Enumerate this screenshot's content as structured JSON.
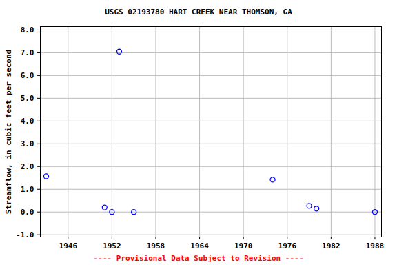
{
  "chart_data": {
    "type": "scatter",
    "title": "USGS 02193780 HART CREEK NEAR THOMSON, GA",
    "y_label": "Streamflow, in cubic feet per second",
    "caption": "---- Provisional Data Subject to Revision ----",
    "x": [
      1943,
      1951,
      1952,
      1953,
      1955,
      1974,
      1979,
      1980,
      1988
    ],
    "values": [
      1.57,
      0.2,
      0.0,
      7.05,
      0.0,
      1.42,
      0.27,
      0.15,
      0.0
    ],
    "color": "#0000ff",
    "marker": "open circle",
    "xlim": [
      1942.2,
      1988.9
    ],
    "xticks": [
      1946,
      1952,
      1958,
      1964,
      1970,
      1976,
      1982,
      1988
    ],
    "ylim": [
      -1.1,
      8.15
    ],
    "yticks": [
      {
        "value": -1,
        "label": "-1.0"
      },
      {
        "value": 0,
        "label": "0.0"
      },
      {
        "value": 1,
        "label": "1.0"
      },
      {
        "value": 2,
        "label": "2.0"
      },
      {
        "value": 3,
        "label": "3.0"
      },
      {
        "value": 4,
        "label": "4.0"
      },
      {
        "value": 5,
        "label": "5.0"
      },
      {
        "value": 6,
        "label": "6.0"
      },
      {
        "value": 7,
        "label": "7.0"
      },
      {
        "value": 8,
        "label": "8.0"
      }
    ],
    "grid": true
  }
}
